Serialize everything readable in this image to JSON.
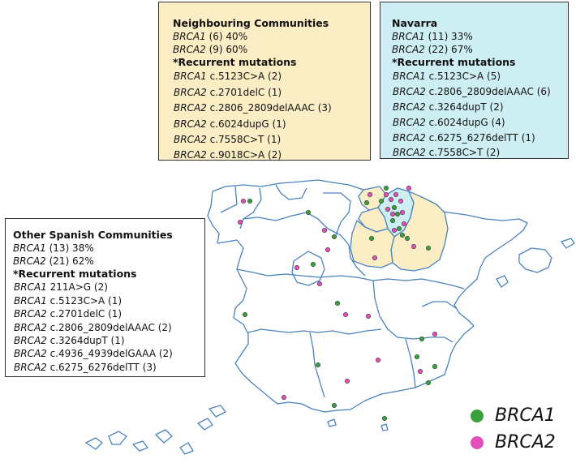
{
  "colors": {
    "brca1": "#3aa03a",
    "brca2": "#e050b8",
    "neighbour_fill": "#fbeec5",
    "navarra_fill": "#cdeef3",
    "border": "#4a82c0"
  },
  "neighbouring": {
    "title": "Neighbouring Communities",
    "summary": [
      {
        "gene": "BRCA1",
        "rest": " (6) 40%"
      },
      {
        "gene": "BRCA2",
        "rest": " (9) 60%"
      }
    ],
    "subtitle": "*Recurrent mutations",
    "mutations": [
      {
        "gene": "BRCA1",
        "rest": " c.5123C>A (2)"
      },
      {
        "gene": "BRCA2",
        "rest": " c.2701delC (1)"
      },
      {
        "gene": "BRCA2",
        "rest": " c.2806_2809delAAAC (3)"
      },
      {
        "gene": "BRCA2",
        "rest": " c.6024dupG (1)"
      },
      {
        "gene": "BRCA2",
        "rest": " c.7558C>T (1)"
      },
      {
        "gene": "BRCA2",
        "rest": " c.9018C>A (2)"
      }
    ]
  },
  "navarra": {
    "title": "Navarra",
    "summary": [
      {
        "gene": "BRCA1",
        "rest": " (11) 33%"
      },
      {
        "gene": "BRCA2",
        "rest": " (22) 67%"
      }
    ],
    "subtitle": "*Recurrent mutations",
    "mutations": [
      {
        "gene": "BRCA1",
        "rest": " c.5123C>A (5)"
      },
      {
        "gene": "BRCA2",
        "rest": " c.2806_2809delAAAC (6)"
      },
      {
        "gene": "BRCA2",
        "rest": " c.3264dupT (2)"
      },
      {
        "gene": "BRCA2",
        "rest": " c.6024dupG (4)"
      },
      {
        "gene": "BRCA2",
        "rest": " c.6275_6276delTT (1)"
      },
      {
        "gene": "BRCA2",
        "rest": " c.7558C>T (2)"
      }
    ]
  },
  "other": {
    "title": "Other Spanish Communities",
    "summary": [
      {
        "gene": "BRCA1",
        "rest": " (13) 38%"
      },
      {
        "gene": "BRCA2",
        "rest": " (21) 62%"
      }
    ],
    "subtitle": "*Recurrent mutations",
    "mutations": [
      {
        "gene": "BRCA1",
        "rest": " 211A>G (2)"
      },
      {
        "gene": "BRCA1",
        "rest": " c.5123C>A (1)"
      },
      {
        "gene": "BRCA2",
        "rest": " c.2701delC (1)"
      },
      {
        "gene": "BRCA2",
        "rest": " c.2806_2809delAAAC (2)"
      },
      {
        "gene": "BRCA2",
        "rest": " c.3264dupT (1)"
      },
      {
        "gene": "BRCA2",
        "rest": " c.4936_4939delGAAA (2)"
      },
      {
        "gene": "BRCA2",
        "rest": " c.6275_6276delTT (3)"
      }
    ]
  },
  "legend": [
    {
      "label": "BRCA1",
      "key": "brca1"
    },
    {
      "label": "BRCA2",
      "key": "brca2"
    }
  ]
}
